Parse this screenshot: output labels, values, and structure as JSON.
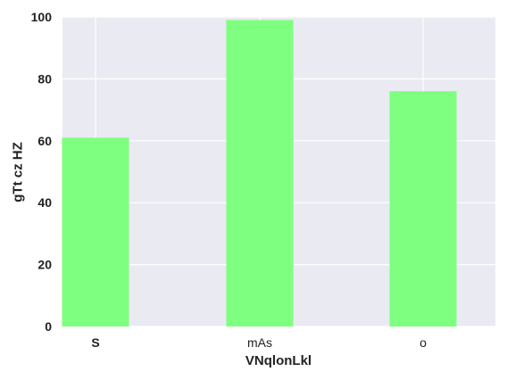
{
  "chart_data": {
    "type": "bar",
    "categories": [
      "S",
      "mAs",
      "o"
    ],
    "values": [
      61,
      99,
      76
    ],
    "xlabel": "VNqlonLkl",
    "ylabel": "gTt cz  HZ",
    "ylim": [
      0,
      100
    ],
    "yticks": [
      "0",
      "20",
      "40",
      "60",
      "80",
      "100"
    ],
    "grid": true,
    "legend": "none",
    "colors": {
      "bar": "#7fff7f",
      "plot_bg": "#eaeaf2",
      "grid": "#ffffff"
    }
  }
}
